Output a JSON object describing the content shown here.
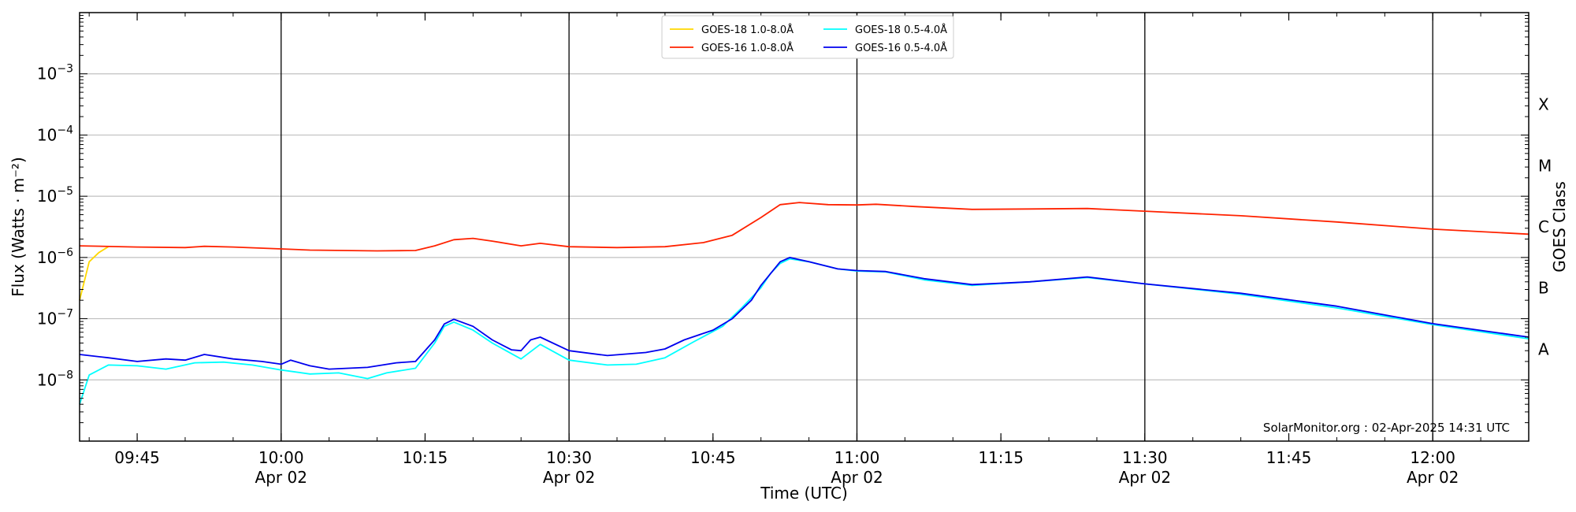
{
  "chart_data": {
    "type": "line",
    "title": "",
    "xlabel": "Time (UTC)",
    "ylabel": "Flux (Watts · m⁻²)",
    "y2label": "GOES Class",
    "yscale": "log",
    "ylim": [
      1e-09,
      0.01
    ],
    "xlim": [
      "09:39",
      "12:10"
    ],
    "x_ticks": [
      {
        "time": "09:45",
        "label": "09:45"
      },
      {
        "time": "10:00",
        "label": "10:00",
        "date": "Apr 02"
      },
      {
        "time": "10:15",
        "label": "10:15"
      },
      {
        "time": "10:30",
        "label": "10:30",
        "date": "Apr 02"
      },
      {
        "time": "10:45",
        "label": "10:45"
      },
      {
        "time": "11:00",
        "label": "11:00",
        "date": "Apr 02"
      },
      {
        "time": "11:15",
        "label": "11:15"
      },
      {
        "time": "11:30",
        "label": "11:30",
        "date": "Apr 02"
      },
      {
        "time": "11:45",
        "label": "11:45"
      },
      {
        "time": "12:00",
        "label": "12:00",
        "date": "Apr 02"
      }
    ],
    "y_ticks": [
      {
        "exp": -8,
        "base": "10",
        "sup": "−8"
      },
      {
        "exp": -7,
        "base": "10",
        "sup": "−7"
      },
      {
        "exp": -6,
        "base": "10",
        "sup": "−6"
      },
      {
        "exp": -5,
        "base": "10",
        "sup": "−5"
      },
      {
        "exp": -4,
        "base": "10",
        "sup": "−4"
      },
      {
        "exp": -3,
        "base": "10",
        "sup": "−3"
      }
    ],
    "class_labels": [
      {
        "label": "A",
        "exp": -7.5
      },
      {
        "label": "B",
        "exp": -6.5
      },
      {
        "label": "C",
        "exp": -5.5
      },
      {
        "label": "M",
        "exp": -4.5
      },
      {
        "label": "X",
        "exp": -3.5
      }
    ],
    "vlines": [
      "10:00",
      "10:30",
      "11:00",
      "11:30",
      "12:00"
    ],
    "grid": "horizontal",
    "legend_position": "top-center",
    "credit": "SolarMonitor.org : 02-Apr-2025 14:31 UTC",
    "series": [
      {
        "name": "GOES-18 1.0-8.0Å",
        "color": "#ffd700",
        "points": [
          [
            "09:39",
            2e-07
          ],
          [
            "09:40",
            8.5e-07
          ],
          [
            "09:41",
            1.2e-06
          ],
          [
            "09:42",
            1.5e-06
          ]
        ]
      },
      {
        "name": "GOES-16 1.0-8.0Å",
        "color": "#ff2200",
        "points": [
          [
            "09:39",
            1.55e-06
          ],
          [
            "09:45",
            1.48e-06
          ],
          [
            "09:50",
            1.45e-06
          ],
          [
            "09:52",
            1.52e-06
          ],
          [
            "09:55",
            1.48e-06
          ],
          [
            "10:00",
            1.38e-06
          ],
          [
            "10:03",
            1.32e-06
          ],
          [
            "10:10",
            1.28e-06
          ],
          [
            "10:14",
            1.3e-06
          ],
          [
            "10:16",
            1.55e-06
          ],
          [
            "10:18",
            1.95e-06
          ],
          [
            "10:20",
            2.05e-06
          ],
          [
            "10:22",
            1.85e-06
          ],
          [
            "10:25",
            1.55e-06
          ],
          [
            "10:27",
            1.7e-06
          ],
          [
            "10:30",
            1.5e-06
          ],
          [
            "10:35",
            1.45e-06
          ],
          [
            "10:40",
            1.5e-06
          ],
          [
            "10:44",
            1.75e-06
          ],
          [
            "10:47",
            2.3e-06
          ],
          [
            "10:50",
            4.5e-06
          ],
          [
            "10:52",
            7.3e-06
          ],
          [
            "10:54",
            7.9e-06
          ],
          [
            "10:57",
            7.3e-06
          ],
          [
            "11:00",
            7.2e-06
          ],
          [
            "11:02",
            7.4e-06
          ],
          [
            "11:06",
            6.8e-06
          ],
          [
            "11:12",
            6.1e-06
          ],
          [
            "11:18",
            6.2e-06
          ],
          [
            "11:24",
            6.3e-06
          ],
          [
            "11:30",
            5.7e-06
          ],
          [
            "11:40",
            4.8e-06
          ],
          [
            "11:50",
            3.8e-06
          ],
          [
            "12:00",
            2.9e-06
          ],
          [
            "12:10",
            2.4e-06
          ]
        ]
      },
      {
        "name": "GOES-18 0.5-4.0Å",
        "color": "#00ffff",
        "points": [
          [
            "09:39",
            4e-09
          ],
          [
            "09:40",
            1.2e-08
          ],
          [
            "09:42",
            1.75e-08
          ],
          [
            "09:45",
            1.7e-08
          ],
          [
            "09:48",
            1.5e-08
          ],
          [
            "09:51",
            1.9e-08
          ],
          [
            "09:54",
            1.95e-08
          ],
          [
            "09:57",
            1.75e-08
          ],
          [
            "10:00",
            1.45e-08
          ],
          [
            "10:03",
            1.25e-08
          ],
          [
            "10:06",
            1.3e-08
          ],
          [
            "10:09",
            1.05e-08
          ],
          [
            "10:11",
            1.3e-08
          ],
          [
            "10:14",
            1.55e-08
          ],
          [
            "10:16",
            4e-08
          ],
          [
            "10:17",
            7.5e-08
          ],
          [
            "10:18",
            8.8e-08
          ],
          [
            "10:20",
            6.5e-08
          ],
          [
            "10:22",
            4e-08
          ],
          [
            "10:25",
            2.2e-08
          ],
          [
            "10:27",
            3.8e-08
          ],
          [
            "10:30",
            2.1e-08
          ],
          [
            "10:34",
            1.75e-08
          ],
          [
            "10:37",
            1.8e-08
          ],
          [
            "10:40",
            2.3e-08
          ],
          [
            "10:43",
            4.2e-08
          ],
          [
            "10:46",
            7.5e-08
          ],
          [
            "10:48",
            1.5e-07
          ],
          [
            "10:50",
            3.2e-07
          ],
          [
            "10:51",
            5.5e-07
          ],
          [
            "10:52",
            8e-07
          ],
          [
            "10:53",
            9.5e-07
          ],
          [
            "10:55",
            8.5e-07
          ],
          [
            "10:58",
            6.5e-07
          ],
          [
            "11:00",
            6e-07
          ],
          [
            "11:03",
            5.8e-07
          ],
          [
            "11:07",
            4.3e-07
          ],
          [
            "11:12",
            3.5e-07
          ],
          [
            "11:18",
            4e-07
          ],
          [
            "11:24",
            4.7e-07
          ],
          [
            "11:30",
            3.7e-07
          ],
          [
            "11:40",
            2.5e-07
          ],
          [
            "11:50",
            1.5e-07
          ],
          [
            "12:00",
            8e-08
          ],
          [
            "12:10",
            4.7e-08
          ]
        ]
      },
      {
        "name": "GOES-16 0.5-4.0Å",
        "color": "#0000ee",
        "points": [
          [
            "09:39",
            2.6e-08
          ],
          [
            "09:42",
            2.3e-08
          ],
          [
            "09:45",
            2e-08
          ],
          [
            "09:48",
            2.2e-08
          ],
          [
            "09:50",
            2.1e-08
          ],
          [
            "09:52",
            2.6e-08
          ],
          [
            "09:55",
            2.2e-08
          ],
          [
            "09:58",
            2e-08
          ],
          [
            "10:00",
            1.8e-08
          ],
          [
            "10:01",
            2.1e-08
          ],
          [
            "10:03",
            1.7e-08
          ],
          [
            "10:05",
            1.5e-08
          ],
          [
            "10:09",
            1.6e-08
          ],
          [
            "10:12",
            1.9e-08
          ],
          [
            "10:14",
            2e-08
          ],
          [
            "10:16",
            4.5e-08
          ],
          [
            "10:17",
            8.2e-08
          ],
          [
            "10:18",
            9.8e-08
          ],
          [
            "10:20",
            7.5e-08
          ],
          [
            "10:22",
            4.5e-08
          ],
          [
            "10:24",
            3.1e-08
          ],
          [
            "10:25",
            3e-08
          ],
          [
            "10:26",
            4.5e-08
          ],
          [
            "10:27",
            5e-08
          ],
          [
            "10:30",
            3e-08
          ],
          [
            "10:34",
            2.5e-08
          ],
          [
            "10:38",
            2.8e-08
          ],
          [
            "10:40",
            3.2e-08
          ],
          [
            "10:42",
            4.5e-08
          ],
          [
            "10:45",
            6.5e-08
          ],
          [
            "10:47",
            1e-07
          ],
          [
            "10:49",
            2e-07
          ],
          [
            "10:50",
            3.5e-07
          ],
          [
            "10:52",
            8.5e-07
          ],
          [
            "10:53",
            1e-06
          ],
          [
            "10:55",
            8.5e-07
          ],
          [
            "10:58",
            6.5e-07
          ],
          [
            "11:00",
            6.1e-07
          ],
          [
            "11:03",
            5.9e-07
          ],
          [
            "11:07",
            4.5e-07
          ],
          [
            "11:12",
            3.6e-07
          ],
          [
            "11:18",
            4e-07
          ],
          [
            "11:24",
            4.8e-07
          ],
          [
            "11:30",
            3.7e-07
          ],
          [
            "11:40",
            2.6e-07
          ],
          [
            "11:50",
            1.6e-07
          ],
          [
            "12:00",
            8.3e-08
          ],
          [
            "12:10",
            5e-08
          ]
        ]
      }
    ]
  }
}
